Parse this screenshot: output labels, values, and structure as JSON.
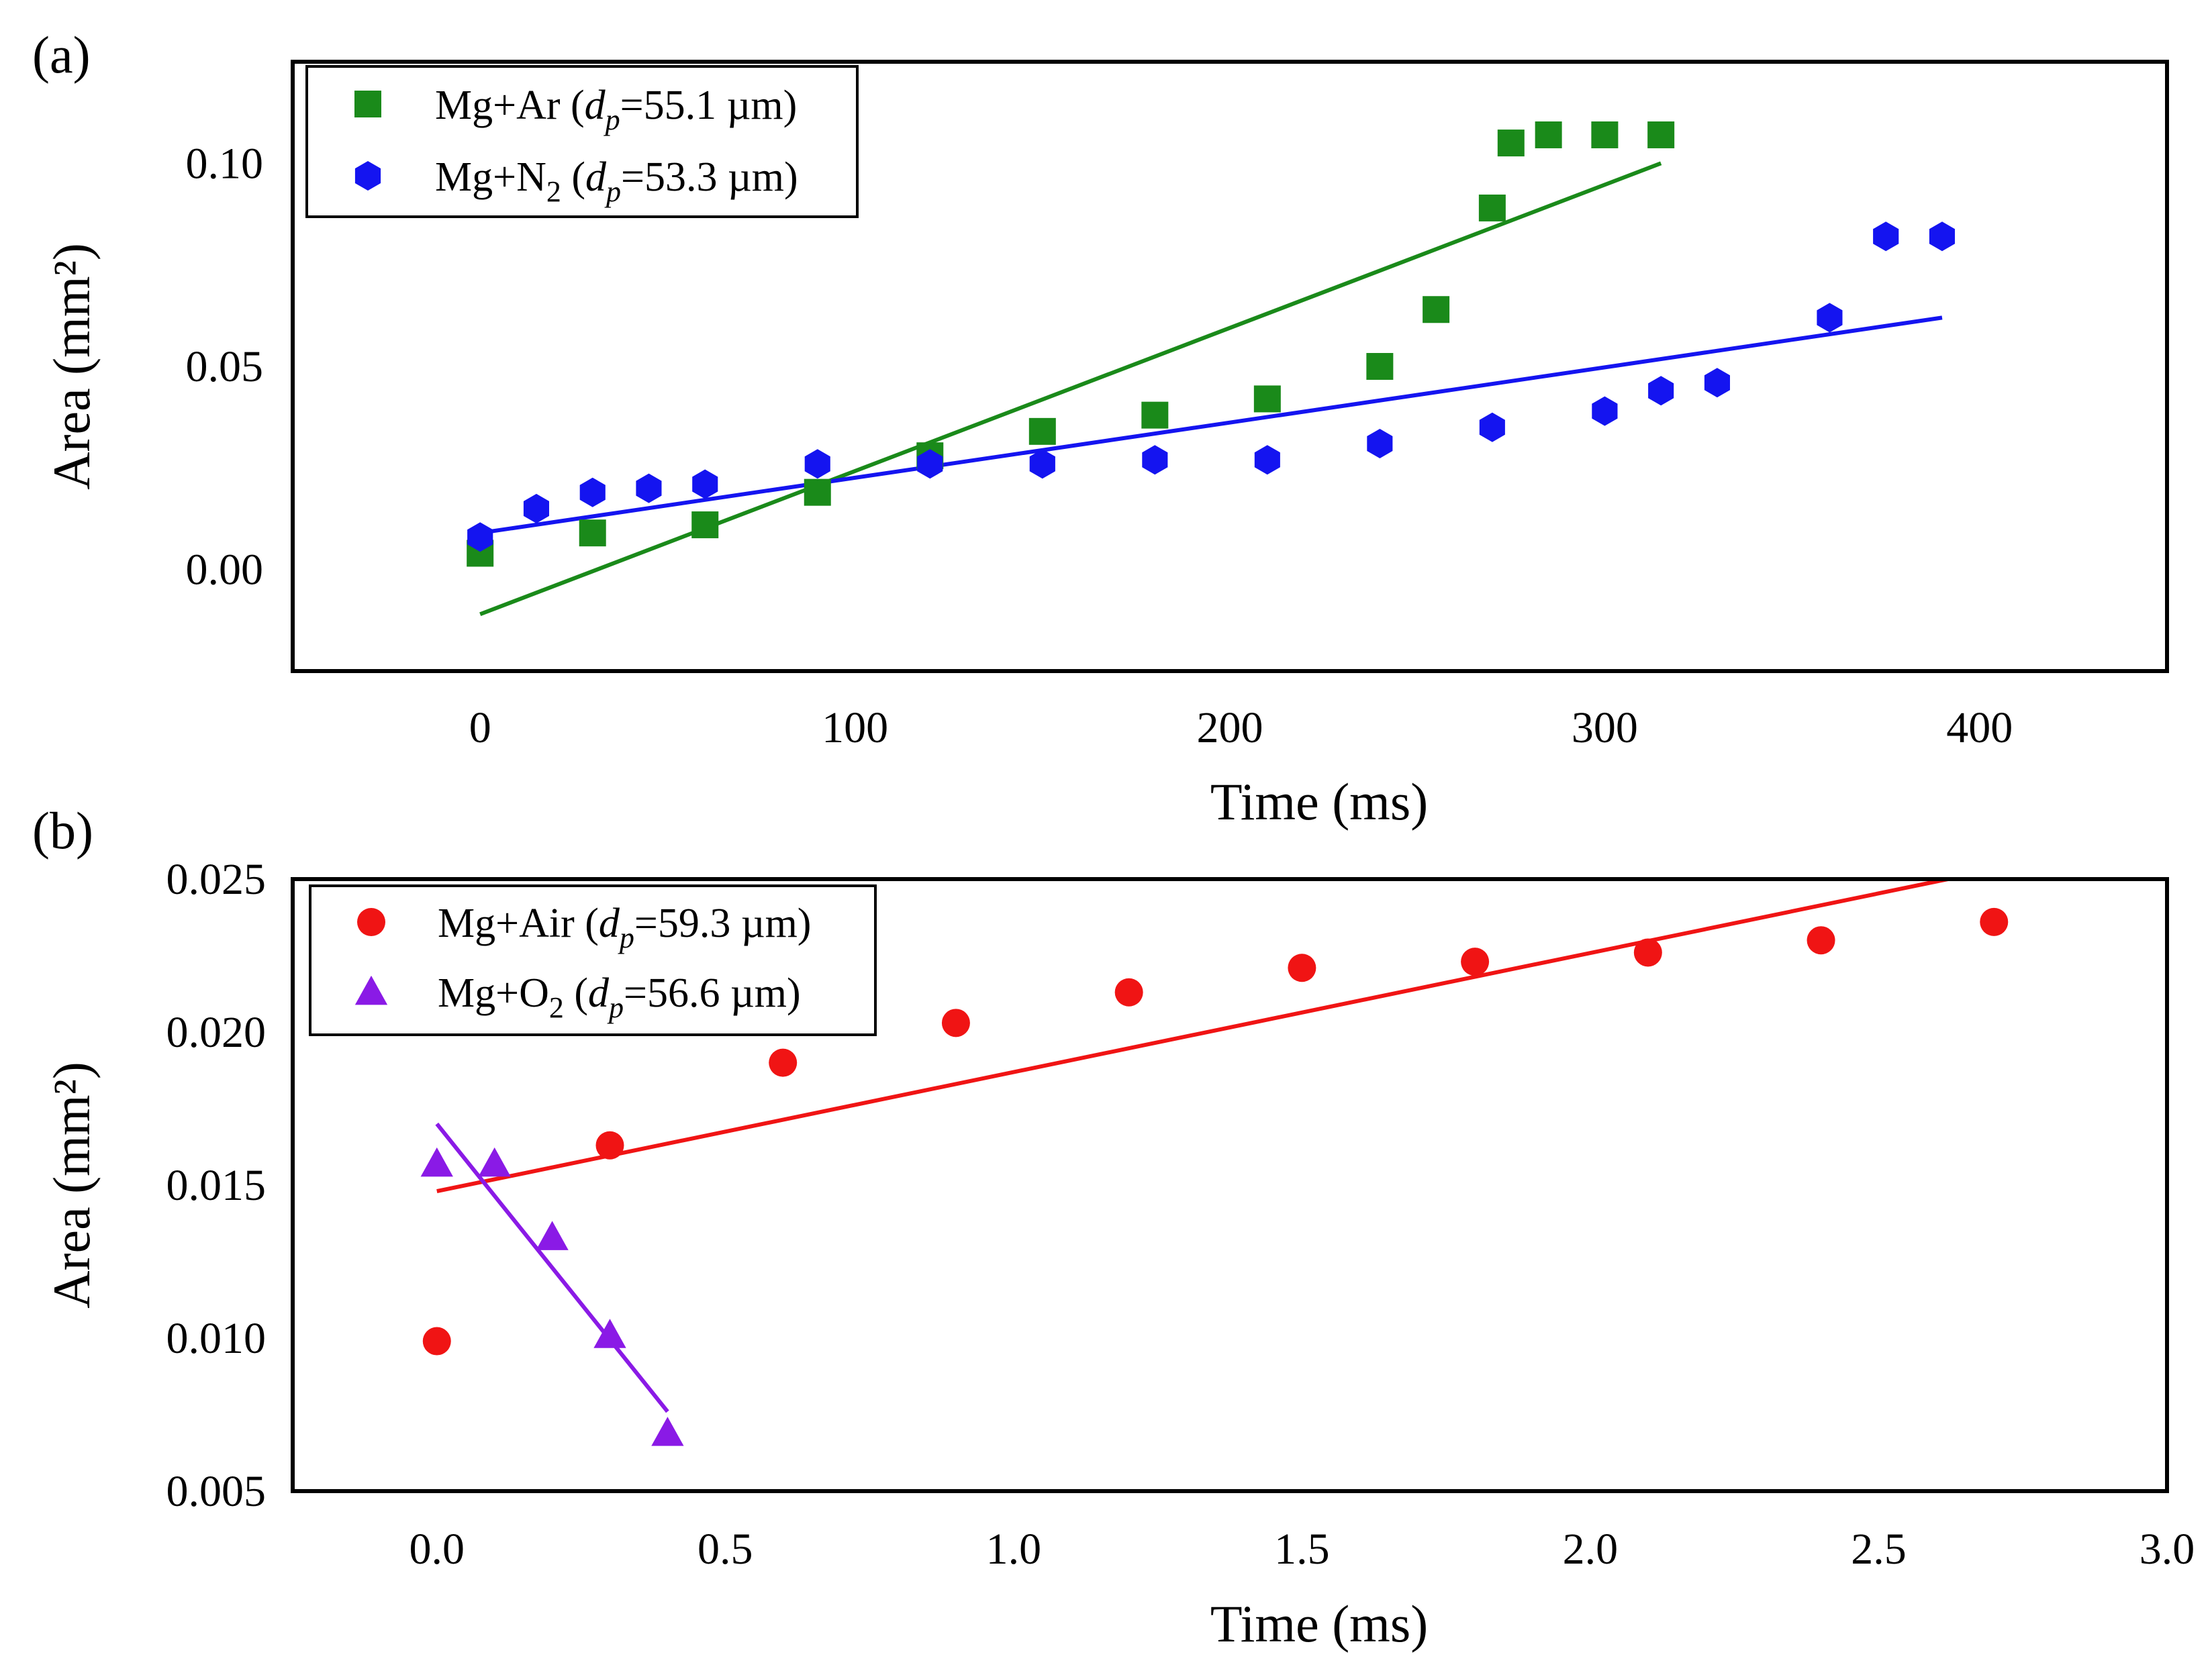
{
  "chart_data": [
    {
      "type": "scatter",
      "panel_label": "(a)",
      "xlabel": "Time (ms)",
      "ylabel": "Area (mm²)",
      "xlim": [
        -50,
        450
      ],
      "ylim": [
        -0.025,
        0.125
      ],
      "xticks": [
        0,
        100,
        200,
        300,
        400
      ],
      "xtick_labels": [
        "0",
        "100",
        "200",
        "300",
        "400"
      ],
      "yticks": [
        0.0,
        0.05,
        0.1
      ],
      "ytick_labels": [
        "0.00",
        "0.05",
        "0.10"
      ],
      "legend_position": "top-left",
      "series": [
        {
          "name": "Mg+Ar (dp=55.1 µm)",
          "legend_prefix": "Mg+Ar (",
          "legend_dp": "d",
          "legend_dp_sub": "p",
          "legend_value": "=55.1 µm)",
          "marker": "square",
          "color": "#1a8a1a",
          "x": [
            0,
            30,
            60,
            90,
            120,
            150,
            180,
            210,
            240,
            255,
            270,
            275,
            285,
            300,
            315
          ],
          "y": [
            0.004,
            0.009,
            0.011,
            0.019,
            0.028,
            0.034,
            0.038,
            0.042,
            0.05,
            0.064,
            0.089,
            0.105,
            0.107,
            0.107,
            0.107
          ],
          "fit": {
            "x": [
              0,
              315
            ],
            "y": [
              -0.011,
              0.1
            ]
          }
        },
        {
          "name": "Mg+N2 (dp=53.3 µm)",
          "legend_prefix": "Mg+N",
          "legend_prefix_sub": "2",
          "legend_mid": " (",
          "legend_dp": "d",
          "legend_dp_sub": "p",
          "legend_value": "=53.3 µm)",
          "marker": "hexagon",
          "color": "#1414f0",
          "x": [
            0,
            15,
            30,
            45,
            60,
            90,
            120,
            150,
            180,
            210,
            240,
            270,
            300,
            315,
            330,
            360,
            375,
            390
          ],
          "y": [
            0.008,
            0.015,
            0.019,
            0.02,
            0.021,
            0.026,
            0.026,
            0.026,
            0.027,
            0.027,
            0.031,
            0.035,
            0.039,
            0.044,
            0.046,
            0.062,
            0.082,
            0.082
          ],
          "fit": {
            "x": [
              0,
              390
            ],
            "y": [
              0.009,
              0.062
            ]
          }
        }
      ]
    },
    {
      "type": "scatter",
      "panel_label": "(b)",
      "xlabel": "Time (ms)",
      "ylabel": "Area (mm²)",
      "xlim": [
        -0.25,
        3.0
      ],
      "ylim": [
        0.005,
        0.025
      ],
      "xticks": [
        0.0,
        0.5,
        1.0,
        1.5,
        2.0,
        2.5,
        3.0
      ],
      "xtick_labels": [
        "0.0",
        "0.5",
        "1.0",
        "1.5",
        "2.0",
        "2.5",
        "3.0"
      ],
      "yticks": [
        0.005,
        0.01,
        0.015,
        0.02,
        0.025
      ],
      "ytick_labels": [
        "0.005",
        "0.010",
        "0.015",
        "0.020",
        "0.025"
      ],
      "legend_position": "top-left",
      "series": [
        {
          "name": "Mg+Air (dp=59.3 µm)",
          "legend_prefix": "Mg+Air (",
          "legend_dp": "d",
          "legend_dp_sub": "p",
          "legend_value": "=59.3 µm)",
          "marker": "circle",
          "color": "#f01414",
          "x": [
            0.0,
            0.3,
            0.6,
            0.9,
            1.2,
            1.5,
            1.8,
            2.1,
            2.4,
            2.7
          ],
          "y": [
            0.0099,
            0.0163,
            0.019,
            0.0203,
            0.0213,
            0.0221,
            0.0223,
            0.0226,
            0.023,
            0.0236
          ],
          "fit": {
            "x": [
              0.0,
              2.62
            ],
            "y": [
              0.0148,
              0.025
            ]
          }
        },
        {
          "name": "Mg+O2 (dp=56.6 µm)",
          "legend_prefix": "Mg+O",
          "legend_prefix_sub": "2",
          "legend_mid": "  (",
          "legend_dp": "d",
          "legend_dp_sub": "p",
          "legend_value": "=56.6 µm)",
          "marker": "triangle",
          "color": "#8a1ae6",
          "x": [
            0.0,
            0.1,
            0.2,
            0.3,
            0.4
          ],
          "y": [
            0.0157,
            0.0157,
            0.0133,
            0.0101,
            0.0069
          ],
          "fit": {
            "x": [
              0.0,
              0.4
            ],
            "y": [
              0.017,
              0.0076
            ]
          }
        }
      ]
    }
  ]
}
